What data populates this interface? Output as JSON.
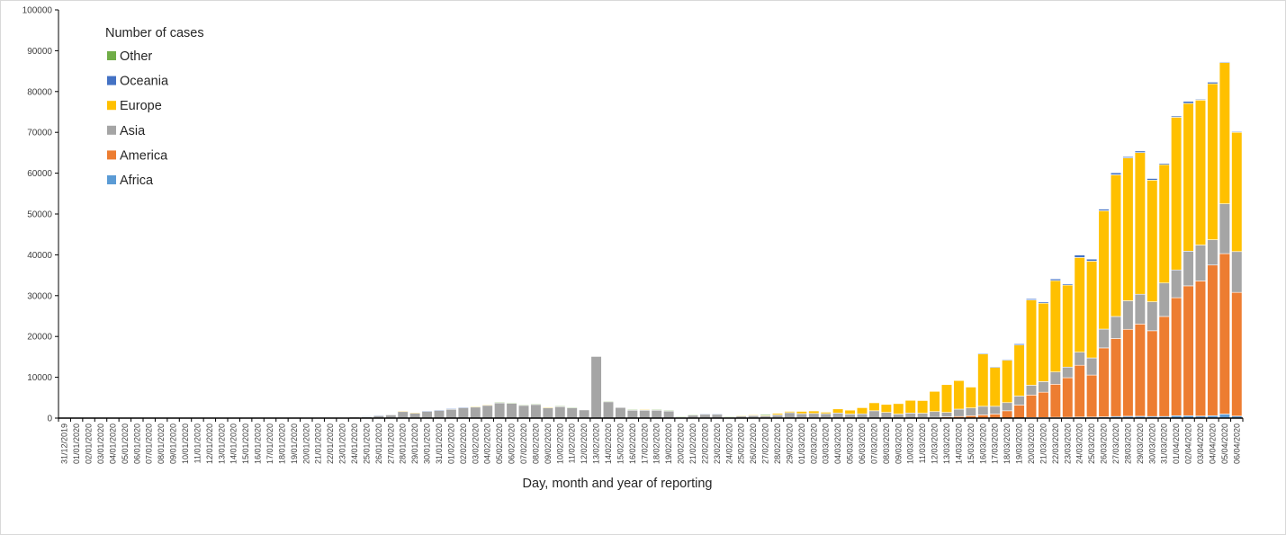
{
  "chart_data": {
    "type": "bar",
    "stacked": true,
    "title": "",
    "xlabel": "Day, month and year of reporting",
    "ylabel": "",
    "ylim": [
      0,
      100000
    ],
    "yticks": [
      "0",
      "10000",
      "20000",
      "30000",
      "40000",
      "50000",
      "60000",
      "70000",
      "80000",
      "90000",
      "100000"
    ],
    "grid": false,
    "legend": {
      "title": "Number of cases",
      "placement": "top-left",
      "order": [
        "Other",
        "Oceania",
        "Europe",
        "Asia",
        "America",
        "Africa"
      ]
    },
    "categories": [
      "31/12/2019",
      "01/01/2020",
      "02/01/2020",
      "03/01/2020",
      "04/01/2020",
      "05/01/2020",
      "06/01/2020",
      "07/01/2020",
      "08/01/2020",
      "09/01/2020",
      "10/01/2020",
      "11/01/2020",
      "12/01/2020",
      "13/01/2020",
      "14/01/2020",
      "15/01/2020",
      "16/01/2020",
      "17/01/2020",
      "18/01/2020",
      "19/01/2020",
      "20/01/2020",
      "21/01/2020",
      "22/01/2020",
      "23/01/2020",
      "24/01/2020",
      "25/01/2020",
      "26/01/2020",
      "27/01/2020",
      "28/01/2020",
      "29/01/2020",
      "30/01/2020",
      "31/01/2020",
      "01/02/2020",
      "02/02/2020",
      "03/02/2020",
      "04/02/2020",
      "05/02/2020",
      "06/02/2020",
      "07/02/2020",
      "08/02/2020",
      "09/02/2020",
      "10/02/2020",
      "11/02/2020",
      "12/02/2020",
      "13/02/2020",
      "14/02/2020",
      "15/02/2020",
      "16/02/2020",
      "17/02/2020",
      "18/02/2020",
      "19/02/2020",
      "20/02/2020",
      "21/02/2020",
      "22/02/2020",
      "23/02/2020",
      "24/02/2020",
      "25/02/2020",
      "26/02/2020",
      "27/02/2020",
      "28/02/2020",
      "29/02/2020",
      "01/03/2020",
      "02/03/2020",
      "03/03/2020",
      "04/03/2020",
      "05/03/2020",
      "06/03/2020",
      "07/03/2020",
      "08/03/2020",
      "09/03/2020",
      "10/03/2020",
      "11/03/2020",
      "12/03/2020",
      "13/03/2020",
      "14/03/2020",
      "15/03/2020",
      "16/03/2020",
      "17/03/2020",
      "18/03/2020",
      "19/03/2020",
      "20/03/2020",
      "21/03/2020",
      "22/03/2020",
      "23/03/2020",
      "24/03/2020",
      "25/03/2020",
      "26/03/2020",
      "27/03/2020",
      "28/03/2020",
      "29/03/2020",
      "30/03/2020",
      "31/03/2020",
      "01/04/2020",
      "02/04/2020",
      "03/04/2020",
      "04/04/2020",
      "05/04/2020",
      "06/04/2020"
    ],
    "series": [
      {
        "name": "Africa",
        "color": "#5B9BD5",
        "values": [
          0,
          0,
          0,
          0,
          0,
          0,
          0,
          0,
          0,
          0,
          0,
          0,
          0,
          0,
          0,
          0,
          0,
          0,
          0,
          0,
          0,
          0,
          0,
          0,
          0,
          0,
          0,
          0,
          0,
          0,
          0,
          0,
          0,
          0,
          0,
          0,
          0,
          0,
          0,
          0,
          0,
          0,
          0,
          0,
          0,
          0,
          0,
          0,
          0,
          0,
          0,
          0,
          0,
          0,
          0,
          0,
          0,
          0,
          0,
          0,
          0,
          0,
          0,
          0,
          0,
          0,
          0,
          0,
          0,
          0,
          0,
          0,
          0,
          0,
          0,
          0,
          0,
          0,
          0,
          0,
          150,
          150,
          200,
          200,
          250,
          250,
          300,
          400,
          450,
          450,
          400,
          400,
          600,
          600,
          500,
          600,
          1000,
          500
        ]
      },
      {
        "name": "America",
        "color": "#ED7D31",
        "values": [
          0,
          0,
          0,
          0,
          0,
          0,
          0,
          0,
          0,
          0,
          0,
          0,
          0,
          0,
          0,
          0,
          0,
          0,
          0,
          0,
          0,
          0,
          0,
          0,
          0,
          0,
          0,
          0,
          0,
          0,
          0,
          0,
          0,
          0,
          0,
          0,
          0,
          0,
          0,
          0,
          0,
          0,
          0,
          0,
          0,
          0,
          0,
          0,
          0,
          0,
          0,
          0,
          0,
          0,
          0,
          0,
          0,
          0,
          0,
          0,
          0,
          0,
          0,
          0,
          0,
          0,
          0,
          0,
          0,
          0,
          0,
          100,
          200,
          300,
          400,
          600,
          800,
          1000,
          1800,
          3200,
          5500,
          6200,
          8100,
          9700,
          12700,
          10300,
          16900,
          19100,
          21300,
          22600,
          21000,
          24500,
          28900,
          31800,
          33100,
          36900,
          39300,
          30300
        ]
      },
      {
        "name": "Asia",
        "color": "#A5A5A5",
        "values": [
          27,
          0,
          0,
          17,
          0,
          15,
          0,
          0,
          0,
          0,
          0,
          0,
          0,
          0,
          0,
          0,
          0,
          4,
          17,
          136,
          20,
          151,
          140,
          97,
          259,
          480,
          680,
          790,
          1700,
          1340,
          1760,
          1970,
          2250,
          2600,
          2800,
          3200,
          3800,
          3700,
          3200,
          3450,
          2630,
          2920,
          2600,
          2000,
          15100,
          4100,
          2600,
          2050,
          2050,
          2050,
          1850,
          300,
          800,
          1000,
          1000,
          300,
          600,
          700,
          600,
          800,
          1350,
          1100,
          1150,
          1100,
          1250,
          1000,
          1050,
          1800,
          1400,
          1000,
          1250,
          1100,
          1400,
          1100,
          1800,
          1900,
          2100,
          1900,
          2000,
          2200,
          2400,
          2600,
          3000,
          2600,
          3200,
          4200,
          4600,
          5400,
          7000,
          7300,
          7100,
          8200,
          6800,
          8500,
          8800,
          6200,
          12200,
          10000
        ]
      },
      {
        "name": "Europe",
        "color": "#FFC000",
        "values": [
          0,
          0,
          0,
          0,
          0,
          0,
          0,
          0,
          0,
          0,
          0,
          0,
          0,
          0,
          0,
          0,
          0,
          0,
          0,
          0,
          0,
          0,
          0,
          0,
          0,
          3,
          0,
          0,
          60,
          40,
          0,
          0,
          0,
          0,
          60,
          80,
          0,
          0,
          0,
          0,
          50,
          0,
          0,
          0,
          0,
          0,
          0,
          0,
          40,
          0,
          0,
          0,
          0,
          0,
          0,
          0,
          50,
          80,
          100,
          350,
          300,
          550,
          600,
          350,
          1000,
          950,
          1500,
          1950,
          1950,
          2550,
          3100,
          3100,
          4950,
          6800,
          7000,
          5100,
          12800,
          9500,
          10400,
          12500,
          20900,
          19200,
          22400,
          20100,
          23200,
          23700,
          29000,
          34700,
          35000,
          34700,
          29800,
          29000,
          37400,
          36200,
          35500,
          38200,
          34600,
          29200
        ]
      },
      {
        "name": "Oceania",
        "color": "#4472C4",
        "values": [
          0,
          0,
          0,
          0,
          0,
          0,
          0,
          0,
          0,
          0,
          0,
          0,
          0,
          0,
          0,
          0,
          0,
          0,
          0,
          0,
          0,
          0,
          0,
          0,
          0,
          40,
          60,
          0,
          0,
          0,
          50,
          60,
          80,
          100,
          0,
          0,
          0,
          0,
          0,
          0,
          0,
          0,
          0,
          0,
          0,
          0,
          0,
          0,
          0,
          0,
          0,
          0,
          0,
          80,
          80,
          0,
          0,
          0,
          0,
          0,
          0,
          0,
          0,
          0,
          0,
          0,
          0,
          0,
          0,
          0,
          0,
          0,
          0,
          0,
          0,
          0,
          200,
          200,
          200,
          300,
          300,
          300,
          400,
          300,
          600,
          500,
          400,
          500,
          300,
          400,
          400,
          300,
          300,
          500,
          200,
          400,
          200,
          200
        ]
      },
      {
        "name": "Other",
        "color": "#70AD47",
        "values": [
          0,
          0,
          0,
          0,
          0,
          0,
          0,
          0,
          0,
          0,
          0,
          0,
          0,
          0,
          0,
          0,
          0,
          0,
          0,
          0,
          0,
          0,
          0,
          0,
          0,
          0,
          0,
          0,
          0,
          0,
          0,
          0,
          0,
          0,
          0,
          0,
          80,
          70,
          70,
          30,
          0,
          60,
          70,
          0,
          0,
          60,
          0,
          50,
          0,
          50,
          50,
          80,
          80,
          0,
          0,
          80,
          0,
          0,
          250,
          0,
          0,
          0,
          0,
          0,
          0,
          0,
          0,
          0,
          0,
          0,
          0,
          0,
          0,
          0,
          0,
          0,
          0,
          0,
          0,
          0,
          0,
          0,
          0,
          0,
          0,
          0,
          0,
          0,
          0,
          0,
          0,
          0,
          0,
          0,
          0,
          0,
          0,
          0
        ]
      }
    ]
  }
}
